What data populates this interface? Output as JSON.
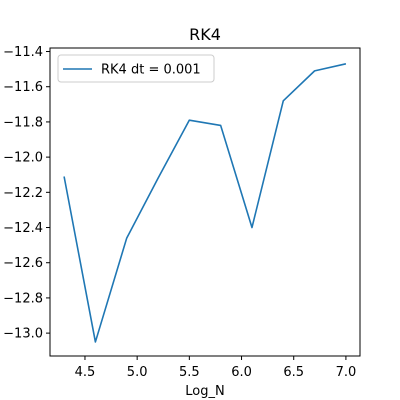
{
  "chart_data": {
    "type": "line",
    "title": "RK4",
    "xlabel": "Log_N",
    "ylabel": "",
    "xlim": [
      4.165,
      7.135
    ],
    "ylim": [
      -13.13,
      -11.38
    ],
    "xticks": [
      4.5,
      5.0,
      5.5,
      6.0,
      6.5,
      7.0
    ],
    "yticks": [
      -11.4,
      -11.6,
      -11.8,
      -12.0,
      -12.2,
      -12.4,
      -12.6,
      -12.8,
      -13.0
    ],
    "xtick_labels": [
      "4.5",
      "5.0",
      "5.5",
      "6.0",
      "6.5",
      "7.0"
    ],
    "ytick_labels": [
      "−11.4",
      "−11.6",
      "−11.8",
      "−12.0",
      "−12.2",
      "−12.4",
      "−12.6",
      "−12.8",
      "−13.0"
    ],
    "grid": false,
    "legend_position": "upper-left",
    "series": [
      {
        "name": "RK4 dt = 0.001",
        "color": "#1f77b4",
        "x": [
          4.3,
          4.6,
          4.9,
          5.2,
          5.5,
          5.8,
          6.1,
          6.4,
          6.7,
          7.0
        ],
        "y": [
          -12.11,
          -13.05,
          -12.46,
          -12.12,
          -11.79,
          -11.82,
          -12.4,
          -11.68,
          -11.51,
          -11.47
        ]
      }
    ]
  }
}
